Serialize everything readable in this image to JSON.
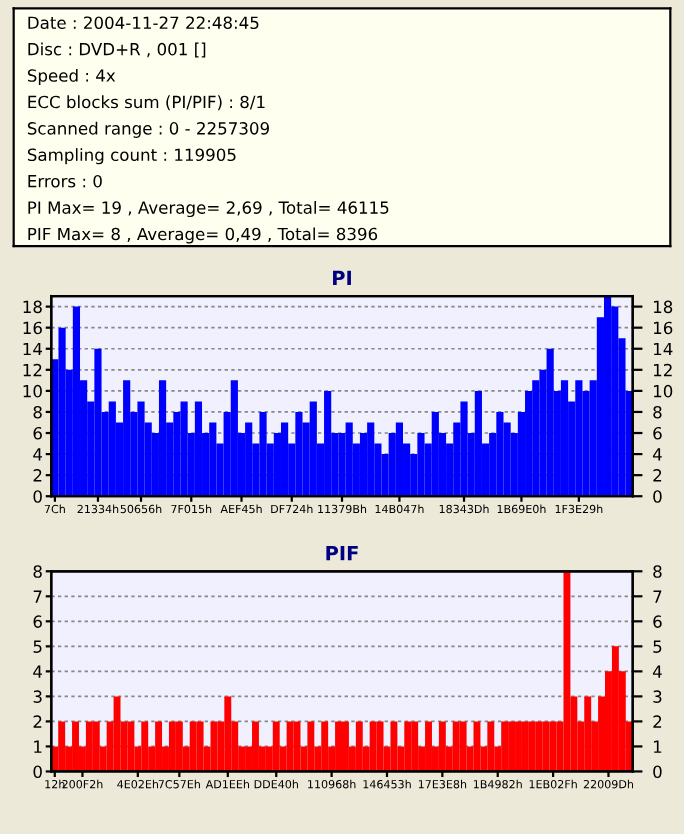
{
  "chart_data": [
    {
      "type": "other",
      "annotations": [
        "Date : 2004-11-27 22:48:45",
        "Disc : DVD+R , 001 []",
        "Speed : 4x",
        "ECC blocks sum (PI/PIF) : 8/1",
        "Scanned range : 0 - 2257309",
        "Sampling count : 119905",
        "Errors : 0",
        "PI Max= 19 , Average= 2,69 , Total= 46115",
        "PIF Max= 8 , Average= 0,49 , Total= 8396"
      ]
    },
    {
      "type": "bar",
      "title": "PI",
      "grid": "y",
      "categories": [
        "7Ch",
        null,
        null,
        null,
        null,
        null,
        "21334h",
        null,
        null,
        null,
        null,
        null,
        "50656h",
        null,
        null,
        null,
        null,
        null,
        null,
        "7F015h",
        null,
        null,
        null,
        null,
        null,
        null,
        "AEF45h",
        null,
        null,
        null,
        null,
        null,
        null,
        "DF724h",
        null,
        null,
        null,
        null,
        null,
        null,
        "11379Bh",
        null,
        null,
        null,
        null,
        null,
        null,
        null,
        "14B047h",
        null,
        null,
        null,
        null,
        null,
        null,
        null,
        null,
        "18343Dh",
        null,
        null,
        null,
        null,
        null,
        null,
        null,
        "1B69E0h",
        null,
        null,
        null,
        null,
        null,
        null,
        null,
        "1F3E29h",
        null,
        null,
        null,
        null,
        null,
        null,
        null
      ],
      "series": [
        {
          "color": "#0000ff",
          "values": [
            13,
            16,
            12,
            18,
            11,
            9,
            14,
            8,
            9,
            7,
            11,
            8,
            9,
            7,
            6,
            11,
            7,
            8,
            9,
            6,
            9,
            6,
            7,
            5,
            8,
            11,
            6,
            7,
            5,
            8,
            5,
            6,
            7,
            5,
            8,
            7,
            9,
            5,
            10,
            6,
            6,
            7,
            5,
            6,
            7,
            5,
            4,
            6,
            7,
            5,
            4,
            6,
            5,
            8,
            6,
            5,
            7,
            9,
            6,
            10,
            5,
            6,
            8,
            7,
            6,
            8,
            10,
            11,
            12,
            14,
            10,
            11,
            9,
            11,
            10,
            11,
            17,
            19,
            18,
            15,
            10
          ]
        }
      ],
      "ylim": [
        0,
        19
      ],
      "yticks": [
        0,
        2,
        4,
        6,
        8,
        10,
        12,
        14,
        16,
        18
      ],
      "y2lim": [
        0,
        19
      ],
      "y2ticks": [
        0,
        2,
        4,
        6,
        8,
        10,
        12,
        14,
        16,
        18
      ]
    },
    {
      "type": "bar",
      "title": "PIF",
      "grid": "y",
      "categories": [
        "12h",
        null,
        null,
        null,
        "200F2h",
        null,
        null,
        null,
        null,
        null,
        null,
        null,
        "4E02Eh",
        null,
        null,
        null,
        null,
        null,
        "7C57Eh",
        null,
        null,
        null,
        null,
        null,
        null,
        "AD1EEh",
        null,
        null,
        null,
        null,
        null,
        null,
        "DDE40h",
        null,
        null,
        null,
        null,
        null,
        null,
        null,
        "110968h",
        null,
        null,
        null,
        null,
        null,
        null,
        null,
        "146453h",
        null,
        null,
        null,
        null,
        null,
        null,
        null,
        "17E3E8h",
        null,
        null,
        null,
        null,
        null,
        null,
        null,
        "1B4982h",
        null,
        null,
        null,
        null,
        null,
        null,
        null,
        "1EB02Fh",
        null,
        null,
        null,
        null,
        null,
        null,
        null,
        "22009Dh",
        null,
        null,
        null
      ],
      "series": [
        {
          "color": "#ff0000",
          "values": [
            1,
            2,
            1,
            2,
            1,
            2,
            2,
            1,
            2,
            3,
            2,
            2,
            1,
            2,
            1,
            2,
            1,
            2,
            2,
            1,
            2,
            2,
            1,
            2,
            2,
            3,
            2,
            1,
            1,
            2,
            1,
            1,
            2,
            1,
            2,
            2,
            1,
            2,
            1,
            2,
            1,
            2,
            2,
            1,
            2,
            1,
            2,
            2,
            1,
            2,
            1,
            2,
            2,
            1,
            2,
            1,
            2,
            1,
            2,
            2,
            1,
            2,
            1,
            2,
            1,
            2,
            2,
            2,
            2,
            2,
            2,
            2,
            2,
            2,
            8,
            3,
            2,
            3,
            2,
            3,
            4,
            5,
            4,
            2
          ]
        }
      ],
      "ylim": [
        0,
        8
      ],
      "yticks": [
        0,
        1,
        2,
        3,
        4,
        5,
        6,
        7,
        8
      ],
      "y2lim": [
        0,
        8
      ],
      "y2ticks": [
        0,
        1,
        2,
        3,
        4,
        5,
        6,
        7,
        8
      ]
    }
  ]
}
